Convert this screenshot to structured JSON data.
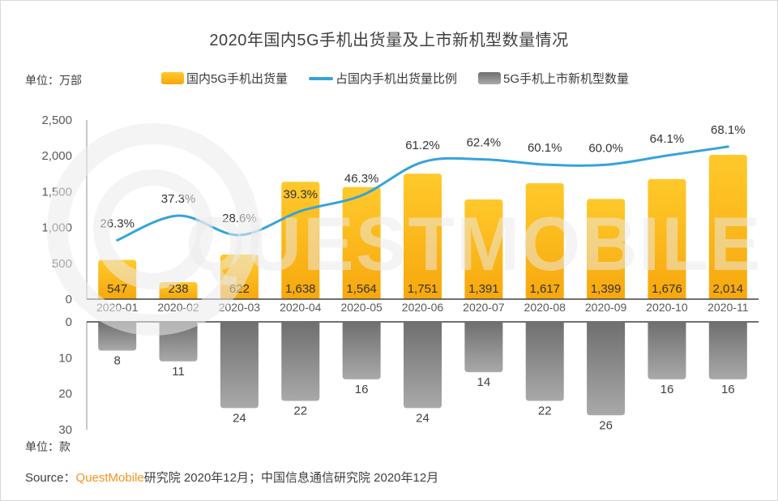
{
  "page": {
    "title": "2020年国内5G手机出货量及上市新机型数量情况",
    "unit_top": "单位：万部",
    "unit_bottom": "单位：款",
    "source": {
      "prefix": "Source：",
      "brand": "QuestMobile",
      "suffix": "研究院 2020年12月；中国信息通信研究院 2020年12月"
    },
    "watermark_text": "QUESTMOBILE"
  },
  "legend": {
    "items": [
      {
        "label": "国内5G手机出货量",
        "swatch": "yellow-bar"
      },
      {
        "label": "占国内手机出货量比例",
        "swatch": "blue-line"
      },
      {
        "label": "5G手机上市新机型数量",
        "swatch": "gray-bar"
      }
    ]
  },
  "colors": {
    "bar_yellow_top": "#FFC92B",
    "bar_yellow_bottom": "#F7A80D",
    "line_blue": "#35A3DB",
    "bar_gray_top": "#6F6F6F",
    "bar_gray_bottom": "#A9A9A9",
    "axis_dark": "#404040",
    "axis_light": "#909090",
    "text_dark": "#333333",
    "text_tick": "#595959",
    "brand_orange": "#F7941E",
    "watermark": "#EBEBEB"
  },
  "chart_data": [
    {
      "type": "bar",
      "title": "国内5G手机出货量及占比（上图）",
      "categories": [
        "2020-01",
        "2020-02",
        "2020-03",
        "2020-04",
        "2020-05",
        "2020-06",
        "2020-07",
        "2020-08",
        "2020-09",
        "2020-10",
        "2020-11"
      ],
      "grid": false,
      "legend_position": "top",
      "series": [
        {
          "name": "国内5G手机出货量",
          "type": "bar",
          "unit": "万部",
          "values": [
            547,
            238,
            622,
            1638,
            1564,
            1751,
            1391,
            1617,
            1399,
            1676,
            2014
          ],
          "labels": [
            "547",
            "238",
            "622",
            "1,638",
            "1,564",
            "1,751",
            "1,391",
            "1,617",
            "1,399",
            "1,676",
            "2,014"
          ],
          "ylim": [
            0,
            2500
          ],
          "yticks": [
            "0",
            "500",
            "1,000",
            "1,500",
            "2,000",
            "2,500"
          ]
        },
        {
          "name": "占国内手机出货量比例",
          "type": "line",
          "unit": "%",
          "values": [
            26.3,
            37.3,
            28.6,
            39.3,
            46.3,
            61.2,
            62.4,
            60.1,
            60.0,
            64.1,
            68.1
          ],
          "labels": [
            "26.3%",
            "37.3%",
            "28.6%",
            "39.3%",
            "46.3%",
            "61.2%",
            "62.4%",
            "60.1%",
            "60.0%",
            "64.1%",
            "68.1%"
          ],
          "ylim": [
            0,
            80
          ],
          "axis": "secondary-hidden"
        }
      ]
    },
    {
      "type": "bar",
      "title": "5G手机上市新机型数量（下图，倒置轴）",
      "categories": [
        "2020-01",
        "2020-02",
        "2020-03",
        "2020-04",
        "2020-05",
        "2020-06",
        "2020-07",
        "2020-08",
        "2020-09",
        "2020-10",
        "2020-11"
      ],
      "grid": false,
      "inverted": true,
      "series": [
        {
          "name": "5G手机上市新机型数量",
          "type": "bar",
          "unit": "款",
          "values": [
            8,
            11,
            24,
            22,
            16,
            24,
            14,
            22,
            26,
            16,
            16
          ],
          "labels": [
            "8",
            "11",
            "24",
            "22",
            "16",
            "24",
            "14",
            "22",
            "26",
            "16",
            "16"
          ],
          "ylim": [
            0,
            30
          ],
          "yticks": [
            "0",
            "10",
            "20",
            "30"
          ]
        }
      ]
    }
  ]
}
